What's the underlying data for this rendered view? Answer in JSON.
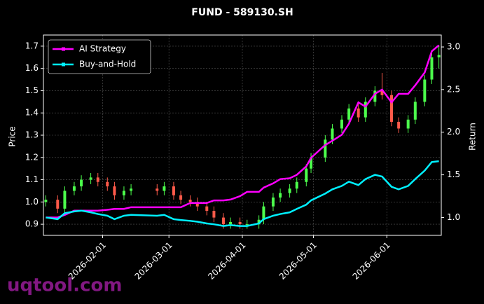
{
  "chart_data": {
    "type": "candlestick_lines",
    "title": "FUND - 589130.SH",
    "y_label": "Price",
    "y2_label": "Return",
    "watermark": "uqtool.com",
    "x": [
      "2026-01-08",
      "2026-01-13",
      "2026-01-16",
      "2026-01-20",
      "2026-01-23",
      "2026-01-27",
      "2026-01-30",
      "2026-02-03",
      "2026-02-06",
      "2026-02-10",
      "2026-02-13",
      "2026-02-24",
      "2026-02-27",
      "2026-03-03",
      "2026-03-06",
      "2026-03-10",
      "2026-03-13",
      "2026-03-17",
      "2026-03-20",
      "2026-03-24",
      "2026-03-27",
      "2026-03-31",
      "2026-04-03",
      "2026-04-08",
      "2026-04-10",
      "2026-04-14",
      "2026-04-17",
      "2026-04-21",
      "2026-04-24",
      "2026-04-28",
      "2026-04-30",
      "2026-05-06",
      "2026-05-09",
      "2026-05-13",
      "2026-05-16",
      "2026-05-20",
      "2026-05-23",
      "2026-05-27",
      "2026-05-30",
      "2026-06-03",
      "2026-06-06",
      "2026-06-10",
      "2026-06-13",
      "2026-06-17",
      "2026-06-20",
      "2026-06-23"
    ],
    "open": [
      1.0,
      1.01,
      0.97,
      1.05,
      1.07,
      1.1,
      1.11,
      1.09,
      1.07,
      1.03,
      1.05,
      1.06,
      1.05,
      1.07,
      1.03,
      1.01,
      1.0,
      0.98,
      0.96,
      0.93,
      0.9,
      0.91,
      0.9,
      0.9,
      0.92,
      0.98,
      1.02,
      1.04,
      1.06,
      1.09,
      1.15,
      1.2,
      1.28,
      1.33,
      1.37,
      1.42,
      1.38,
      1.45,
      1.5,
      1.48,
      1.36,
      1.33,
      1.37,
      1.45,
      1.55,
      1.65
    ],
    "high": [
      1.03,
      1.03,
      1.07,
      1.09,
      1.12,
      1.13,
      1.13,
      1.11,
      1.09,
      1.07,
      1.08,
      1.08,
      1.09,
      1.09,
      1.05,
      1.03,
      1.02,
      1.0,
      0.98,
      0.95,
      0.93,
      0.93,
      0.92,
      0.94,
      1.0,
      1.04,
      1.06,
      1.08,
      1.11,
      1.17,
      1.22,
      1.3,
      1.35,
      1.39,
      1.44,
      1.44,
      1.47,
      1.52,
      1.58,
      1.5,
      1.38,
      1.39,
      1.47,
      1.57,
      1.67,
      1.7
    ],
    "low": [
      0.98,
      0.95,
      0.95,
      1.03,
      1.05,
      1.08,
      1.07,
      1.05,
      1.01,
      1.01,
      1.03,
      1.03,
      1.03,
      1.01,
      0.99,
      0.98,
      0.96,
      0.94,
      0.91,
      0.88,
      0.88,
      0.88,
      0.88,
      0.88,
      0.9,
      0.96,
      1.0,
      1.02,
      1.04,
      1.07,
      1.13,
      1.18,
      1.26,
      1.31,
      1.35,
      1.36,
      1.36,
      1.43,
      1.46,
      1.34,
      1.31,
      1.31,
      1.35,
      1.43,
      1.53,
      1.6
    ],
    "close": [
      1.01,
      0.97,
      1.05,
      1.07,
      1.1,
      1.11,
      1.09,
      1.07,
      1.03,
      1.05,
      1.06,
      1.05,
      1.07,
      1.03,
      1.01,
      1.0,
      0.98,
      0.96,
      0.93,
      0.9,
      0.91,
      0.9,
      0.9,
      0.92,
      0.98,
      1.02,
      1.04,
      1.06,
      1.09,
      1.15,
      1.2,
      1.28,
      1.33,
      1.37,
      1.42,
      1.38,
      1.45,
      1.5,
      1.48,
      1.36,
      1.33,
      1.37,
      1.45,
      1.55,
      1.65,
      1.66
    ],
    "up_color": "#4cff4c",
    "down_color": "#ff5a4a",
    "series": [
      {
        "name": "AI Strategy",
        "color": "#ff00ff",
        "axis": "y2",
        "values": [
          1.0,
          1.0,
          1.03,
          1.08,
          1.08,
          1.08,
          1.08,
          1.09,
          1.1,
          1.1,
          1.12,
          1.12,
          1.12,
          1.12,
          1.12,
          1.17,
          1.17,
          1.17,
          1.2,
          1.2,
          1.21,
          1.25,
          1.3,
          1.3,
          1.35,
          1.4,
          1.45,
          1.46,
          1.5,
          1.6,
          1.7,
          1.85,
          1.9,
          1.97,
          2.1,
          2.35,
          2.3,
          2.45,
          2.5,
          2.35,
          2.45,
          2.45,
          2.55,
          2.7,
          2.95,
          3.02
        ]
      },
      {
        "name": "Buy-and-Hold",
        "color": "#00f0ff",
        "axis": "y2",
        "values": [
          1.0,
          0.98,
          1.05,
          1.07,
          1.08,
          1.06,
          1.04,
          1.02,
          0.98,
          1.02,
          1.03,
          1.02,
          1.03,
          0.98,
          0.97,
          0.96,
          0.95,
          0.93,
          0.92,
          0.9,
          0.91,
          0.9,
          0.9,
          0.93,
          0.98,
          1.02,
          1.04,
          1.06,
          1.1,
          1.15,
          1.2,
          1.28,
          1.33,
          1.37,
          1.42,
          1.38,
          1.45,
          1.5,
          1.48,
          1.36,
          1.33,
          1.37,
          1.45,
          1.55,
          1.65,
          1.66
        ]
      }
    ],
    "xlim": [
      "2026-01-07",
      "2026-06-24"
    ],
    "xticks": [
      "2026-02-01",
      "2026-03-01",
      "2026-04-01",
      "2026-05-01",
      "2026-06-01"
    ],
    "ylim": [
      0.85,
      1.75
    ],
    "yticks": [
      0.9,
      {
        "value": 1,
        "label": "1.0"
      },
      1.1,
      1.2,
      1.3,
      1.4,
      1.5,
      1.6,
      1.7
    ],
    "y2lim": [
      0.79,
      3.14
    ],
    "y2ticks": [
      {
        "value": 1,
        "label": "1.0"
      },
      1.5,
      {
        "value": 2,
        "label": "2.0"
      },
      2.5,
      {
        "value": 3,
        "label": "3.0"
      }
    ],
    "grid": true,
    "legend": "upper-left"
  }
}
